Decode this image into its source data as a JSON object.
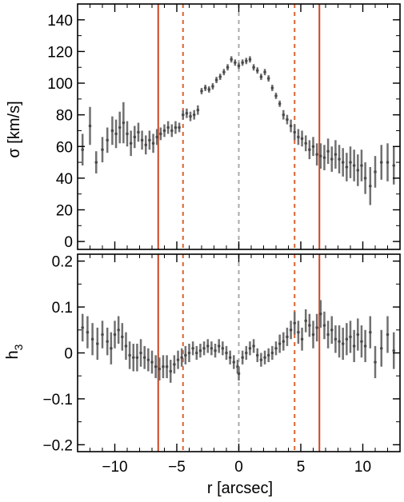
{
  "chart_data": [
    {
      "type": "scatter",
      "panel": "top",
      "ylabel": "σ [km/s]",
      "xlim": [
        -13,
        13
      ],
      "ylim": [
        -5,
        150
      ],
      "yticks": [
        0,
        20,
        40,
        60,
        80,
        100,
        120,
        140
      ],
      "grid": false,
      "points": [
        {
          "x": -12.6,
          "y": 58,
          "err": 10
        },
        {
          "x": -12.0,
          "y": 73,
          "err": 12
        },
        {
          "x": -11.5,
          "y": 50,
          "err": 7
        },
        {
          "x": -11.0,
          "y": 58,
          "err": 8
        },
        {
          "x": -10.6,
          "y": 64,
          "err": 8
        },
        {
          "x": -10.2,
          "y": 70,
          "err": 9
        },
        {
          "x": -9.9,
          "y": 68,
          "err": 9
        },
        {
          "x": -9.6,
          "y": 72,
          "err": 10
        },
        {
          "x": -9.3,
          "y": 75,
          "err": 13
        },
        {
          "x": -9.0,
          "y": 68,
          "err": 8
        },
        {
          "x": -8.7,
          "y": 62,
          "err": 8
        },
        {
          "x": -8.4,
          "y": 66,
          "err": 7
        },
        {
          "x": -8.1,
          "y": 69,
          "err": 6
        },
        {
          "x": -7.8,
          "y": 64,
          "err": 6
        },
        {
          "x": -7.5,
          "y": 61,
          "err": 6
        },
        {
          "x": -7.2,
          "y": 64,
          "err": 6
        },
        {
          "x": -6.9,
          "y": 62,
          "err": 6
        },
        {
          "x": -6.6,
          "y": 66,
          "err": 5
        },
        {
          "x": -6.3,
          "y": 68,
          "err": 4
        },
        {
          "x": -6.0,
          "y": 70,
          "err": 4
        },
        {
          "x": -5.7,
          "y": 72,
          "err": 4
        },
        {
          "x": -5.4,
          "y": 70,
          "err": 4
        },
        {
          "x": -5.1,
          "y": 72,
          "err": 4
        },
        {
          "x": -4.8,
          "y": 72,
          "err": 3
        },
        {
          "x": -4.5,
          "y": 80,
          "err": 3
        },
        {
          "x": -4.2,
          "y": 81,
          "err": 3
        },
        {
          "x": -3.9,
          "y": 79,
          "err": 3
        },
        {
          "x": -3.6,
          "y": 80,
          "err": 3
        },
        {
          "x": -3.3,
          "y": 83,
          "err": 3
        },
        {
          "x": -3.0,
          "y": 95,
          "err": 2
        },
        {
          "x": -2.7,
          "y": 97,
          "err": 2
        },
        {
          "x": -2.4,
          "y": 96,
          "err": 2
        },
        {
          "x": -2.1,
          "y": 98,
          "err": 2
        },
        {
          "x": -1.8,
          "y": 102,
          "err": 2
        },
        {
          "x": -1.5,
          "y": 104,
          "err": 2
        },
        {
          "x": -1.2,
          "y": 107,
          "err": 2
        },
        {
          "x": -0.9,
          "y": 110,
          "err": 2
        },
        {
          "x": -0.6,
          "y": 115,
          "err": 2
        },
        {
          "x": -0.3,
          "y": 113,
          "err": 2
        },
        {
          "x": 0.0,
          "y": 111,
          "err": 2
        },
        {
          "x": 0.3,
          "y": 113,
          "err": 2
        },
        {
          "x": 0.6,
          "y": 114,
          "err": 2
        },
        {
          "x": 0.9,
          "y": 115,
          "err": 2
        },
        {
          "x": 1.2,
          "y": 110,
          "err": 2
        },
        {
          "x": 1.5,
          "y": 108,
          "err": 2
        },
        {
          "x": 1.8,
          "y": 104,
          "err": 2
        },
        {
          "x": 2.1,
          "y": 107,
          "err": 2
        },
        {
          "x": 2.4,
          "y": 103,
          "err": 2
        },
        {
          "x": 2.7,
          "y": 97,
          "err": 2
        },
        {
          "x": 3.0,
          "y": 92,
          "err": 2
        },
        {
          "x": 3.3,
          "y": 87,
          "err": 2
        },
        {
          "x": 3.6,
          "y": 80,
          "err": 3
        },
        {
          "x": 3.9,
          "y": 77,
          "err": 3
        },
        {
          "x": 4.2,
          "y": 73,
          "err": 4
        },
        {
          "x": 4.5,
          "y": 69,
          "err": 5
        },
        {
          "x": 4.8,
          "y": 66,
          "err": 5
        },
        {
          "x": 5.1,
          "y": 65,
          "err": 5
        },
        {
          "x": 5.4,
          "y": 62,
          "err": 5
        },
        {
          "x": 5.7,
          "y": 58,
          "err": 6
        },
        {
          "x": 6.0,
          "y": 60,
          "err": 6
        },
        {
          "x": 6.3,
          "y": 55,
          "err": 7
        },
        {
          "x": 6.6,
          "y": 54,
          "err": 8
        },
        {
          "x": 6.9,
          "y": 53,
          "err": 8
        },
        {
          "x": 7.2,
          "y": 57,
          "err": 8
        },
        {
          "x": 7.5,
          "y": 52,
          "err": 8
        },
        {
          "x": 7.8,
          "y": 55,
          "err": 9
        },
        {
          "x": 8.1,
          "y": 52,
          "err": 9
        },
        {
          "x": 8.4,
          "y": 50,
          "err": 9
        },
        {
          "x": 8.7,
          "y": 47,
          "err": 9
        },
        {
          "x": 9.0,
          "y": 50,
          "err": 10
        },
        {
          "x": 9.3,
          "y": 48,
          "err": 10
        },
        {
          "x": 9.6,
          "y": 45,
          "err": 10
        },
        {
          "x": 9.9,
          "y": 48,
          "err": 10
        },
        {
          "x": 10.2,
          "y": 40,
          "err": 10
        },
        {
          "x": 10.6,
          "y": 35,
          "err": 12
        },
        {
          "x": 11.0,
          "y": 44,
          "err": 10
        },
        {
          "x": 11.5,
          "y": 50,
          "err": 11
        },
        {
          "x": 12.0,
          "y": 50,
          "err": 12
        },
        {
          "x": 12.5,
          "y": 48,
          "err": 12
        }
      ]
    },
    {
      "type": "scatter",
      "panel": "bottom",
      "xlabel": "r [arcsec]",
      "ylabel": "h",
      "ylabel_sub": "3",
      "xlim": [
        -13,
        13
      ],
      "ylim": [
        -0.215,
        0.215
      ],
      "yticks": [
        -0.2,
        -0.1,
        0.0,
        0.1,
        0.2
      ],
      "xticks": [
        -10,
        -5,
        0,
        5,
        10
      ],
      "grid": false,
      "points": [
        {
          "x": -12.6,
          "y": 0.055,
          "err": 0.03
        },
        {
          "x": -12.2,
          "y": 0.045,
          "err": 0.035
        },
        {
          "x": -11.8,
          "y": 0.03,
          "err": 0.035
        },
        {
          "x": -11.4,
          "y": 0.02,
          "err": 0.035
        },
        {
          "x": -11.0,
          "y": 0.04,
          "err": 0.03
        },
        {
          "x": -10.6,
          "y": 0.025,
          "err": 0.03
        },
        {
          "x": -10.3,
          "y": 0.01,
          "err": 0.035
        },
        {
          "x": -10.0,
          "y": 0.04,
          "err": 0.03
        },
        {
          "x": -9.7,
          "y": 0.05,
          "err": 0.03
        },
        {
          "x": -9.4,
          "y": 0.035,
          "err": 0.03
        },
        {
          "x": -9.1,
          "y": 0.015,
          "err": 0.03
        },
        {
          "x": -8.8,
          "y": -0.005,
          "err": 0.03
        },
        {
          "x": -8.5,
          "y": -0.01,
          "err": 0.03
        },
        {
          "x": -8.2,
          "y": -0.01,
          "err": 0.03
        },
        {
          "x": -7.9,
          "y": 0.0,
          "err": 0.03
        },
        {
          "x": -7.6,
          "y": -0.01,
          "err": 0.025
        },
        {
          "x": -7.3,
          "y": -0.015,
          "err": 0.025
        },
        {
          "x": -7.0,
          "y": -0.02,
          "err": 0.025
        },
        {
          "x": -6.7,
          "y": -0.03,
          "err": 0.025
        },
        {
          "x": -6.4,
          "y": -0.035,
          "err": 0.025
        },
        {
          "x": -6.1,
          "y": -0.03,
          "err": 0.025
        },
        {
          "x": -5.8,
          "y": -0.03,
          "err": 0.025
        },
        {
          "x": -5.5,
          "y": -0.04,
          "err": 0.025
        },
        {
          "x": -5.2,
          "y": -0.025,
          "err": 0.02
        },
        {
          "x": -4.9,
          "y": -0.015,
          "err": 0.02
        },
        {
          "x": -4.6,
          "y": -0.01,
          "err": 0.02
        },
        {
          "x": -4.3,
          "y": -0.005,
          "err": 0.02
        },
        {
          "x": -4.0,
          "y": 0.0,
          "err": 0.02
        },
        {
          "x": -3.7,
          "y": 0.01,
          "err": 0.015
        },
        {
          "x": -3.4,
          "y": 0.0,
          "err": 0.015
        },
        {
          "x": -3.1,
          "y": 0.005,
          "err": 0.015
        },
        {
          "x": -2.8,
          "y": 0.01,
          "err": 0.015
        },
        {
          "x": -2.5,
          "y": 0.015,
          "err": 0.015
        },
        {
          "x": -2.2,
          "y": 0.01,
          "err": 0.015
        },
        {
          "x": -1.9,
          "y": 0.005,
          "err": 0.015
        },
        {
          "x": -1.6,
          "y": 0.015,
          "err": 0.015
        },
        {
          "x": -1.3,
          "y": 0.01,
          "err": 0.015
        },
        {
          "x": -1.0,
          "y": 0.0,
          "err": 0.015
        },
        {
          "x": -0.7,
          "y": -0.01,
          "err": 0.015
        },
        {
          "x": -0.4,
          "y": -0.02,
          "err": 0.015
        },
        {
          "x": -0.1,
          "y": -0.03,
          "err": 0.015
        },
        {
          "x": 0.0,
          "y": -0.045,
          "err": 0.015
        },
        {
          "x": 0.3,
          "y": -0.01,
          "err": 0.015
        },
        {
          "x": 0.6,
          "y": 0.0,
          "err": 0.015
        },
        {
          "x": 0.9,
          "y": 0.01,
          "err": 0.015
        },
        {
          "x": 1.2,
          "y": 0.015,
          "err": 0.015
        },
        {
          "x": 1.5,
          "y": -0.005,
          "err": 0.015
        },
        {
          "x": 1.8,
          "y": -0.015,
          "err": 0.015
        },
        {
          "x": 2.1,
          "y": -0.01,
          "err": 0.015
        },
        {
          "x": 2.4,
          "y": -0.005,
          "err": 0.015
        },
        {
          "x": 2.7,
          "y": 0.0,
          "err": 0.015
        },
        {
          "x": 3.0,
          "y": 0.01,
          "err": 0.015
        },
        {
          "x": 3.3,
          "y": 0.02,
          "err": 0.02
        },
        {
          "x": 3.6,
          "y": 0.025,
          "err": 0.02
        },
        {
          "x": 3.9,
          "y": 0.035,
          "err": 0.02
        },
        {
          "x": 4.2,
          "y": 0.05,
          "err": 0.02
        },
        {
          "x": 4.5,
          "y": 0.065,
          "err": 0.025
        },
        {
          "x": 4.8,
          "y": 0.045,
          "err": 0.025
        },
        {
          "x": 5.1,
          "y": 0.03,
          "err": 0.025
        },
        {
          "x": 5.4,
          "y": 0.07,
          "err": 0.025
        },
        {
          "x": 5.7,
          "y": 0.06,
          "err": 0.025
        },
        {
          "x": 6.0,
          "y": 0.04,
          "err": 0.03
        },
        {
          "x": 6.3,
          "y": 0.055,
          "err": 0.03
        },
        {
          "x": 6.6,
          "y": 0.085,
          "err": 0.03
        },
        {
          "x": 6.9,
          "y": 0.06,
          "err": 0.03
        },
        {
          "x": 7.2,
          "y": 0.04,
          "err": 0.03
        },
        {
          "x": 7.5,
          "y": 0.05,
          "err": 0.03
        },
        {
          "x": 7.8,
          "y": 0.03,
          "err": 0.03
        },
        {
          "x": 8.1,
          "y": 0.025,
          "err": 0.035
        },
        {
          "x": 8.4,
          "y": 0.02,
          "err": 0.035
        },
        {
          "x": 8.7,
          "y": 0.03,
          "err": 0.035
        },
        {
          "x": 9.0,
          "y": 0.035,
          "err": 0.035
        },
        {
          "x": 9.3,
          "y": 0.015,
          "err": 0.035
        },
        {
          "x": 9.6,
          "y": 0.04,
          "err": 0.035
        },
        {
          "x": 9.9,
          "y": 0.025,
          "err": 0.035
        },
        {
          "x": 10.2,
          "y": 0.015,
          "err": 0.035
        },
        {
          "x": 10.6,
          "y": 0.045,
          "err": 0.035
        },
        {
          "x": 11.0,
          "y": -0.02,
          "err": 0.035
        },
        {
          "x": 11.5,
          "y": 0.01,
          "err": 0.04
        },
        {
          "x": 12.0,
          "y": 0.04,
          "err": 0.04
        },
        {
          "x": 12.5,
          "y": 0.005,
          "err": 0.04
        }
      ]
    }
  ],
  "reference_lines": [
    {
      "x": -6.5,
      "style": "solid",
      "color": "#cc4422"
    },
    {
      "x": -4.5,
      "style": "dashed",
      "color": "#e06030"
    },
    {
      "x": 0,
      "style": "dashed",
      "color": "#aaaaaa"
    },
    {
      "x": 4.5,
      "style": "dashed",
      "color": "#e06030"
    },
    {
      "x": 6.5,
      "style": "solid",
      "color": "#cc4422"
    }
  ],
  "colors": {
    "points": "#4a4a4a",
    "errorbars": "#707070",
    "axes": "#000000"
  }
}
